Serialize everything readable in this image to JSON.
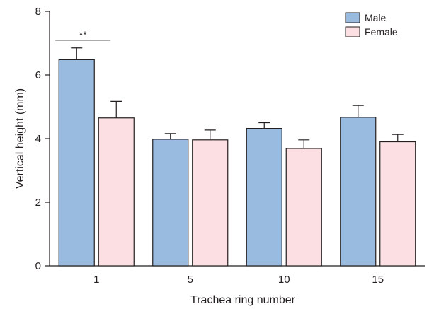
{
  "chart_data": {
    "type": "bar",
    "title": "",
    "xlabel": "Trachea ring number",
    "ylabel": "Vertical height (mm)",
    "categories": [
      "1",
      "5",
      "10",
      "15"
    ],
    "ylim": [
      0,
      8
    ],
    "yticks": [
      0,
      2,
      4,
      6,
      8
    ],
    "grid": false,
    "legend_position": "top-right",
    "series": [
      {
        "name": "Male",
        "values": [
          6.48,
          3.98,
          4.32,
          4.67
        ],
        "errors": [
          0.37,
          0.18,
          0.18,
          0.37
        ],
        "color": "#99bbe0"
      },
      {
        "name": "Female",
        "values": [
          4.65,
          3.96,
          3.69,
          3.9
        ],
        "errors": [
          0.52,
          0.31,
          0.27,
          0.23
        ],
        "color": "#fbdfe2"
      }
    ],
    "annotations": [
      {
        "text": "**",
        "category": "1"
      }
    ]
  }
}
